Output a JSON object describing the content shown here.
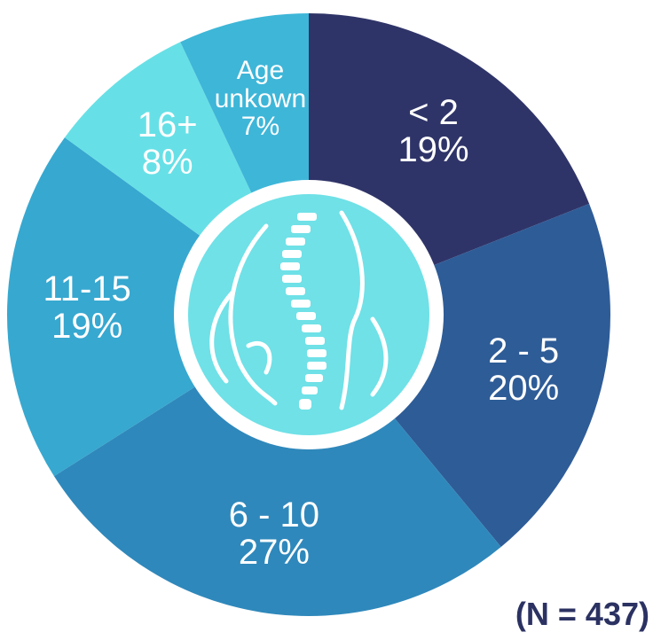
{
  "chart_data": {
    "type": "donut",
    "categories": [
      "< 2",
      "2 - 5",
      "6 - 10",
      "11-15",
      "16+",
      "Age unkown"
    ],
    "values": [
      19,
      20,
      27,
      19,
      8,
      7
    ],
    "value_labels": [
      "19%",
      "20%",
      "27%",
      "19%",
      "8%",
      "7%"
    ],
    "colors": [
      "#2f3468",
      "#2e5c97",
      "#2f88bb",
      "#37a8d0",
      "#66e0e6",
      "#3eb6d8"
    ],
    "note": "(N = 437)"
  }
}
